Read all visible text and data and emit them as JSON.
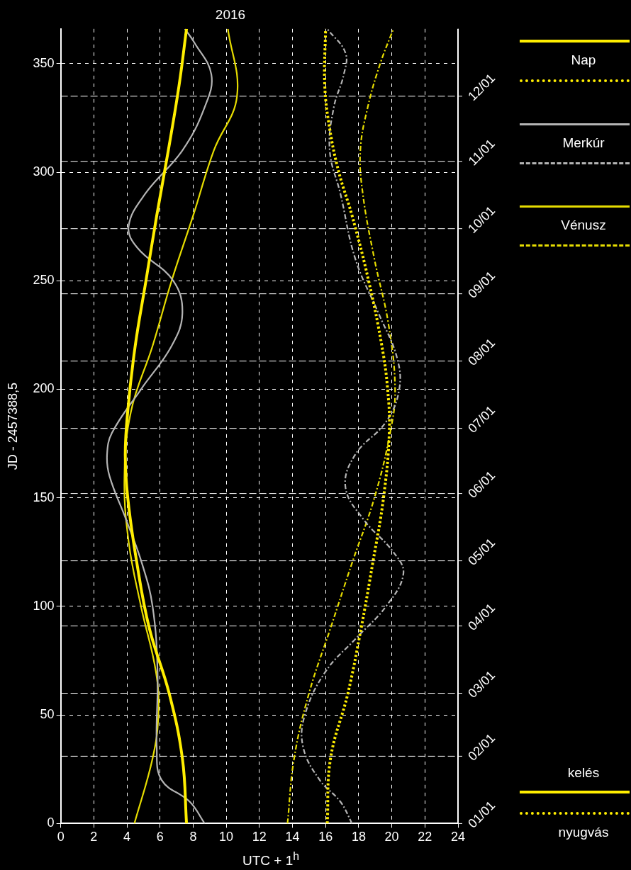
{
  "chart_data": {
    "type": "line",
    "title": "2016",
    "xlabel": "UTC + 1$^{h}$",
    "ylabel": "JD - 2457388,5",
    "xlim": [
      0,
      24
    ],
    "xticks": [
      0,
      2,
      4,
      6,
      8,
      10,
      12,
      14,
      16,
      18,
      20,
      22,
      24
    ],
    "ylim": [
      0,
      366
    ],
    "yticks": [
      0,
      50,
      100,
      150,
      200,
      250,
      300,
      350
    ],
    "y2lim": [
      "2016-01-01",
      "2017-01-01"
    ],
    "y2ticks": [
      {
        "value": "2016-01-01",
        "label": "01/01"
      },
      {
        "value": "2016-02-01",
        "label": "02/01"
      },
      {
        "value": "2016-03-01",
        "label": "03/01"
      },
      {
        "value": "2016-04-01",
        "label": "04/01"
      },
      {
        "value": "2016-05-01",
        "label": "05/01"
      },
      {
        "value": "2016-06-01",
        "label": "06/01"
      },
      {
        "value": "2016-07-01",
        "label": "07/01"
      },
      {
        "value": "2016-08-01",
        "label": "08/01"
      },
      {
        "value": "2016-09-01",
        "label": "09/01"
      },
      {
        "value": "2016-10-01",
        "label": "10/01"
      },
      {
        "value": "2016-11-01",
        "label": "11/01"
      },
      {
        "value": "2016-12-01",
        "label": "12/01"
      }
    ],
    "grid": true,
    "legend": "right",
    "marker": "none",
    "annotations": [
      "kelés",
      "nyugvás"
    ],
    "series": [
      {
        "name": "Nap",
        "color": "#ffee00",
        "line_style": "solid",
        "x": [
          7.6,
          7.35,
          6.55,
          5.35,
          4.6,
          4.05,
          3.9,
          4.05,
          4.5,
          5.15,
          5.8,
          6.5,
          7.15,
          7.6
        ],
        "values": [
          0,
          30,
          60,
          90,
          120,
          150,
          170,
          190,
          220,
          250,
          280,
          310,
          340,
          366
        ]
      },
      {
        "color": "#ffee00",
        "line_style": "dotted",
        "x": [
          16.1,
          16.3,
          17.35,
          18.15,
          18.85,
          19.5,
          19.85,
          19.75,
          19.4,
          18.6,
          17.6,
          16.8,
          16.25,
          15.95,
          16.0
        ],
        "values": [
          0,
          30,
          60,
          90,
          120,
          150,
          180,
          200,
          220,
          250,
          280,
          300,
          320,
          340,
          366
        ]
      },
      {
        "name": "Merkúr",
        "color": "#b4b4b4",
        "line_style": "solid",
        "x": [
          8.7,
          7.8,
          6.1,
          5.8,
          5.85,
          5.55,
          4.9,
          3.95,
          2.95,
          2.8,
          3.1,
          4.85,
          6.7,
          7.35,
          6.8,
          4.65,
          4.1,
          5.1,
          7.35,
          8.7,
          9.1,
          8.05,
          7.5
        ],
        "values": [
          0,
          10,
          20,
          35,
          70,
          100,
          120,
          140,
          160,
          170,
          180,
          200,
          220,
          235,
          250,
          265,
          275,
          290,
          310,
          330,
          345,
          360,
          366
        ]
      },
      {
        "color": "#b4b4b4",
        "line_style": "dashed",
        "x": [
          17.6,
          16.9,
          15.65,
          14.65,
          14.75,
          16.0,
          17.8,
          19.65,
          20.7,
          20.1,
          18.3,
          17.2,
          17.8,
          19.65,
          20.45,
          20.3,
          19.2,
          17.8,
          16.9,
          16.25,
          16.5,
          17.1,
          17.2,
          16.1
        ],
        "values": [
          0,
          10,
          20,
          35,
          50,
          70,
          85,
          100,
          115,
          125,
          140,
          155,
          170,
          185,
          200,
          215,
          235,
          260,
          290,
          310,
          330,
          345,
          355,
          366
        ]
      },
      {
        "name": "Vénusz",
        "color": "#e6dc00",
        "line_style": "solid",
        "x": [
          4.45,
          5.55,
          5.9,
          5.75,
          4.85,
          4.1,
          3.85,
          4.25,
          5.55,
          6.7,
          8.0,
          9.25,
          10.65,
          10.1
        ],
        "values": [
          0,
          30,
          50,
          70,
          100,
          130,
          160,
          190,
          220,
          250,
          280,
          310,
          335,
          366
        ]
      },
      {
        "color": "#e6dc00",
        "line_style": "dashed",
        "x": [
          13.7,
          14.1,
          15.0,
          16.3,
          17.6,
          18.95,
          19.9,
          20.2,
          19.8,
          18.95,
          18.25,
          18.1,
          18.55,
          19.3,
          20.1
        ],
        "values": [
          0,
          30,
          60,
          90,
          120,
          150,
          180,
          200,
          230,
          260,
          290,
          310,
          330,
          350,
          366
        ]
      }
    ]
  }
}
